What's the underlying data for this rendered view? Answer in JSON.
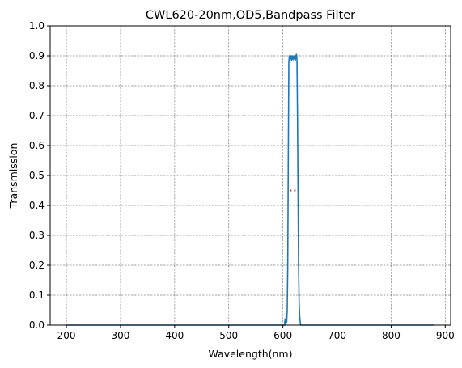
{
  "chart_data": {
    "type": "line",
    "title": "CWL620-20nm,OD5,Bandpass Filter",
    "xlabel": "Wavelength(nm)",
    "ylabel": "Transmission",
    "xlim": [
      170,
      910
    ],
    "ylim": [
      0,
      1.0
    ],
    "x_ticks": [
      200,
      300,
      400,
      500,
      600,
      700,
      800,
      900
    ],
    "y_ticks": [
      0.0,
      0.1,
      0.2,
      0.3,
      0.4,
      0.5,
      0.6,
      0.7,
      0.8,
      0.9,
      1.0
    ],
    "x_tick_labels": [
      "200",
      "300",
      "400",
      "500",
      "600",
      "700",
      "800",
      "900"
    ],
    "y_tick_labels": [
      "0.0",
      "0.1",
      "0.2",
      "0.3",
      "0.4",
      "0.5",
      "0.6",
      "0.7",
      "0.8",
      "0.9",
      "1.0"
    ],
    "grid": true,
    "grid_style": "dashed",
    "series": [
      {
        "color": "#1f77b4",
        "x": [
          200,
          598,
          603,
          604,
          605,
          606,
          607,
          608,
          609,
          610,
          611,
          612,
          613,
          614,
          615,
          616,
          617,
          618,
          619,
          620,
          621,
          622,
          623,
          624,
          625,
          626,
          627,
          628,
          629,
          630,
          631,
          632,
          633,
          635,
          640,
          700,
          880
        ],
        "y": [
          0.0,
          0.0,
          0.0,
          0.02,
          0.0,
          0.03,
          0.01,
          0.05,
          0.2,
          0.55,
          0.88,
          0.9,
          0.895,
          0.89,
          0.9,
          0.885,
          0.9,
          0.893,
          0.887,
          0.9,
          0.89,
          0.895,
          0.885,
          0.9,
          0.905,
          0.89,
          0.7,
          0.45,
          0.2,
          0.08,
          0.03,
          0.01,
          0.0,
          0.0,
          0.0,
          0.0,
          0.0
        ]
      }
    ],
    "annotations": [
      {
        "style": "dotted",
        "color": "#d62728",
        "x": [
          613,
          627
        ],
        "y": [
          0.45,
          0.45
        ]
      }
    ]
  }
}
